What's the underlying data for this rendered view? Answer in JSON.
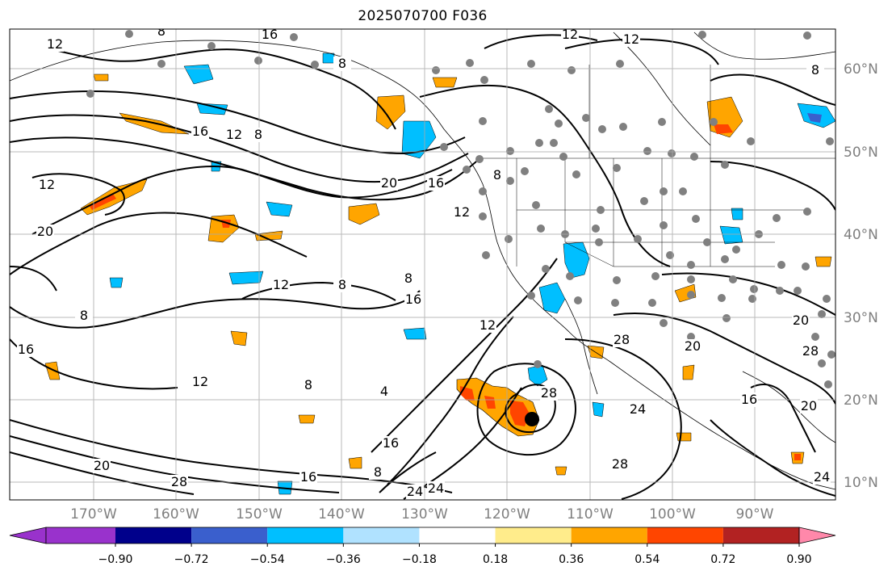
{
  "title": "2025070700 F036",
  "map": {
    "lat_labels": [
      "60°N",
      "50°N",
      "40°N",
      "30°N",
      "20°N",
      "10°N"
    ],
    "lon_labels": [
      "170°W",
      "160°W",
      "150°W",
      "140°W",
      "130°W",
      "120°W",
      "110°W",
      "100°W",
      "90°W"
    ],
    "contour_labels": [
      "16",
      "8",
      "12",
      "12",
      "8",
      "8",
      "16",
      "12",
      "8",
      "12",
      "20",
      "16",
      "12",
      "8",
      "20",
      "12",
      "12",
      "8",
      "16",
      "12",
      "16",
      "8",
      "12",
      "8",
      "28",
      "20",
      "20",
      "28",
      "24",
      "28",
      "16",
      "20",
      "28",
      "16",
      "8",
      "24",
      "24",
      "28",
      "24",
      "20",
      "16",
      "4",
      "8"
    ],
    "storm_marker": "black-dot",
    "gridlines": true,
    "coastlines": true,
    "state_borders": true
  },
  "colorbar": {
    "tick_labels": [
      "−0.90",
      "−0.72",
      "−0.54",
      "−0.36",
      "−0.18",
      "0.18",
      "0.36",
      "0.54",
      "0.72",
      "0.90"
    ],
    "colors": [
      "#9932cc",
      "#00008b",
      "#3a5fcd",
      "#00bfff",
      "#b0e2ff",
      "#ffffff",
      "#ffec8b",
      "#ffa500",
      "#ff4500",
      "#b22222",
      "#ff88aa"
    ],
    "extend": "both"
  }
}
